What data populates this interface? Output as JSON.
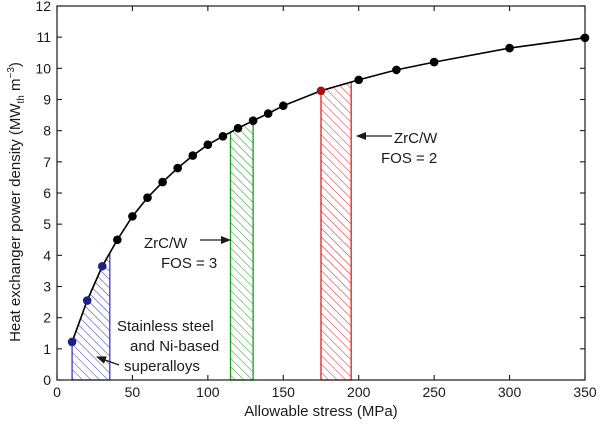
{
  "chart_data": {
    "type": "line",
    "xlabel": "Allowable stress (MPa)",
    "ylabel": {
      "main": "Heat exchanger power density (MW",
      "sub": "th",
      "mid": " m",
      "sup": "−3",
      "end": ")"
    },
    "xlim": [
      0,
      350
    ],
    "ylim": [
      0,
      12
    ],
    "xticks": [
      0,
      50,
      100,
      150,
      200,
      250,
      300,
      350
    ],
    "yticks": [
      0,
      1,
      2,
      3,
      4,
      5,
      6,
      7,
      8,
      9,
      10,
      11,
      12
    ],
    "series": [
      {
        "name": "power density",
        "color": "#000000",
        "points": [
          {
            "x": 10,
            "y": 1.22,
            "c": "#1e1e8c"
          },
          {
            "x": 20,
            "y": 2.55,
            "c": "#1e1e8c"
          },
          {
            "x": 30,
            "y": 3.65,
            "c": "#1e1e8c"
          },
          {
            "x": 40,
            "y": 4.5,
            "c": "#000000"
          },
          {
            "x": 50,
            "y": 5.25,
            "c": "#000000"
          },
          {
            "x": 60,
            "y": 5.85,
            "c": "#000000"
          },
          {
            "x": 70,
            "y": 6.35,
            "c": "#000000"
          },
          {
            "x": 80,
            "y": 6.8,
            "c": "#000000"
          },
          {
            "x": 90,
            "y": 7.2,
            "c": "#000000"
          },
          {
            "x": 100,
            "y": 7.55,
            "c": "#000000"
          },
          {
            "x": 110,
            "y": 7.82,
            "c": "#000000"
          },
          {
            "x": 120,
            "y": 8.08,
            "c": "#000000"
          },
          {
            "x": 130,
            "y": 8.32,
            "c": "#000000"
          },
          {
            "x": 140,
            "y": 8.55,
            "c": "#000000"
          },
          {
            "x": 150,
            "y": 8.8,
            "c": "#000000"
          },
          {
            "x": 175,
            "y": 9.28,
            "c": "#aa1111"
          },
          {
            "x": 200,
            "y": 9.63,
            "c": "#000000"
          },
          {
            "x": 225,
            "y": 9.95,
            "c": "#000000"
          },
          {
            "x": 250,
            "y": 10.2,
            "c": "#000000"
          },
          {
            "x": 300,
            "y": 10.65,
            "c": "#000000"
          },
          {
            "x": 350,
            "y": 10.98,
            "c": "#000000"
          }
        ]
      }
    ],
    "regions": [
      {
        "name": "stainless-steel",
        "x0": 10,
        "x1": 35,
        "color": "#3a3ac8"
      },
      {
        "name": "zrcw-fos3",
        "x0": 115,
        "x1": 130,
        "color": "#1f9a1f"
      },
      {
        "name": "zrcw-fos2",
        "x0": 175,
        "x1": 195,
        "color": "#e02020"
      }
    ],
    "annotations": {
      "fos2": {
        "line1": "ZrC/W",
        "line2": "FOS = 2"
      },
      "fos3": {
        "line1": "ZrC/W",
        "line2": "FOS = 3"
      },
      "steel": {
        "line1": "Stainless steel",
        "line2": "and Ni-based",
        "line3": "superalloys"
      }
    }
  }
}
